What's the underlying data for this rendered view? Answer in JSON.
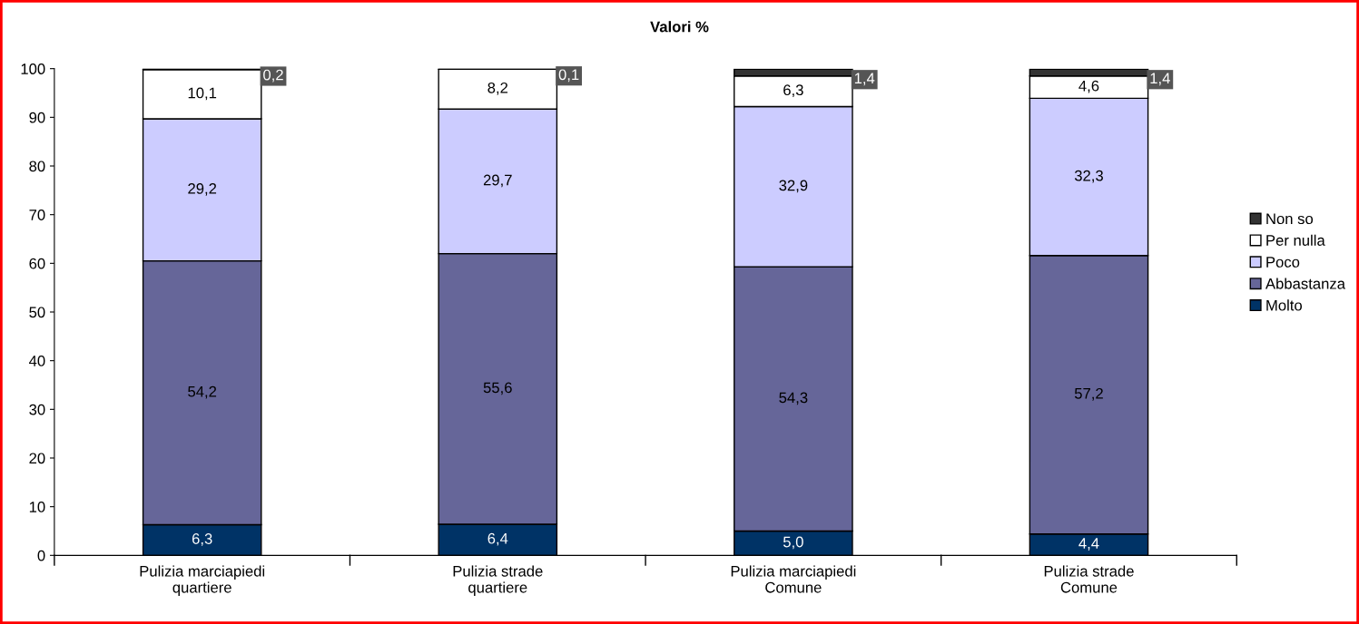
{
  "chart_data": {
    "type": "bar",
    "stacked": true,
    "title": "Valori %",
    "categories": [
      "Pulizia marciapiedi\nquartiere",
      "Pulizia strade\nquartiere",
      "Pulizia marciapiedi\nComune",
      "Pulizia strade\nComune"
    ],
    "series": [
      {
        "name": "Molto",
        "color": "#003366",
        "values": [
          6.3,
          6.4,
          5.0,
          4.4
        ],
        "value_labels": [
          "6,3",
          "6,4",
          "5,0",
          "4,4"
        ]
      },
      {
        "name": "Abbastanza",
        "color": "#666699",
        "values": [
          54.2,
          55.6,
          54.3,
          57.2
        ],
        "value_labels": [
          "54,2",
          "55,6",
          "54,3",
          "57,2"
        ]
      },
      {
        "name": "Poco",
        "color": "#ccccff",
        "values": [
          29.2,
          29.7,
          32.9,
          32.3
        ],
        "value_labels": [
          "29,2",
          "29,7",
          "32,9",
          "32,3"
        ]
      },
      {
        "name": "Per nulla",
        "color": "#ffffff",
        "values": [
          10.1,
          8.2,
          6.3,
          4.6
        ],
        "value_labels": [
          "10,1",
          "8,2",
          "6,3",
          "4,6"
        ]
      },
      {
        "name": "Non so",
        "color": "#333333",
        "values": [
          0.2,
          0.1,
          1.4,
          1.4
        ],
        "value_labels": [
          "0,2",
          "0,1",
          "1,4",
          "1,4"
        ]
      }
    ],
    "ylim": [
      0,
      100
    ],
    "yticks": [
      0,
      10,
      20,
      30,
      40,
      50,
      60,
      70,
      80,
      90,
      100
    ],
    "grid": false,
    "legend": "right"
  }
}
